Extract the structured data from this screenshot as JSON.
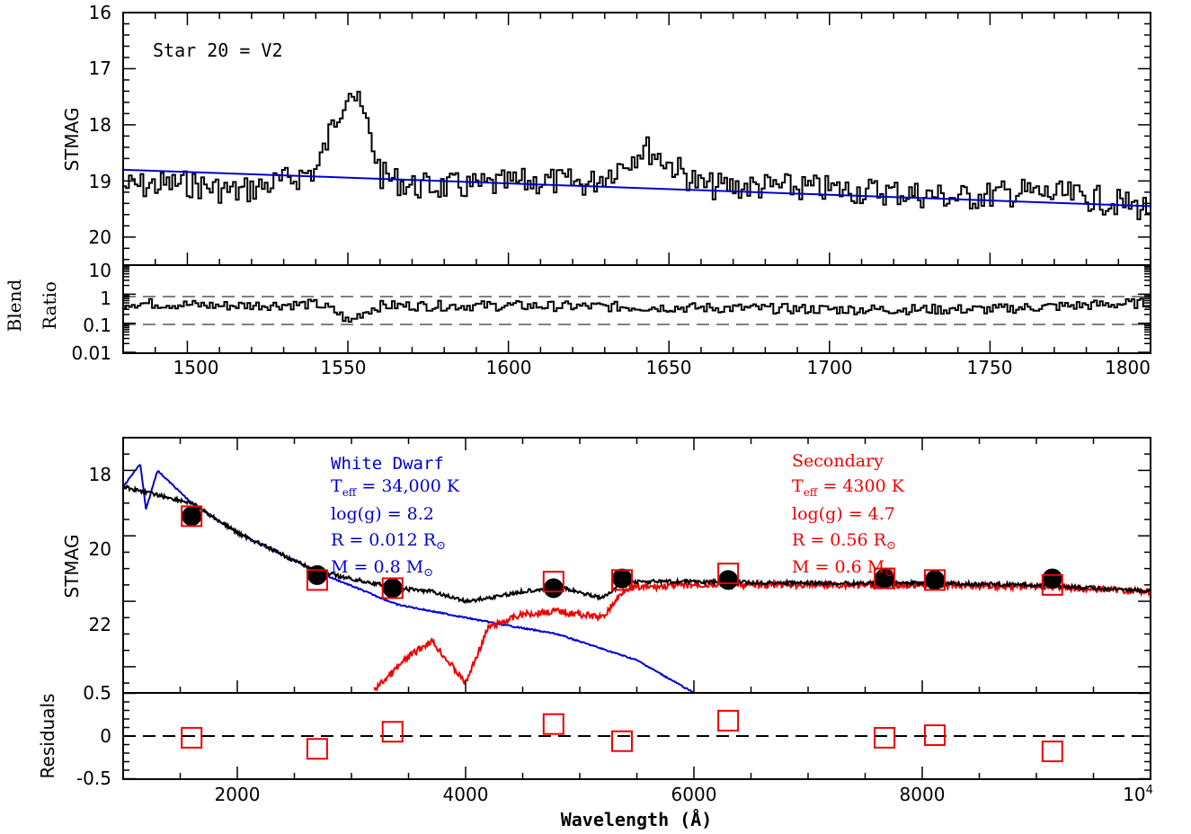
{
  "colors": {
    "wd": "#0000cc",
    "secondary": "#ee0000",
    "data": "#000000",
    "ref": "#555555"
  },
  "top": {
    "annotation": "Star 20 = V2",
    "ylabel": "STMAG",
    "ylim": [
      16,
      20.5
    ],
    "yticks": [
      "16",
      "17",
      "18",
      "19",
      "20"
    ],
    "xlim": [
      1480,
      1800
    ]
  },
  "ratio": {
    "ylabel_1": "Blend",
    "ylabel_2": "Ratio",
    "yticks": [
      "10",
      "1",
      "0.1",
      "0.01"
    ],
    "xticks": [
      "1500",
      "1550",
      "1600",
      "1650",
      "1700",
      "1750",
      "1800"
    ],
    "reference_lines": [
      1,
      0.1
    ]
  },
  "bottom": {
    "ylabel": "STMAG",
    "yticks": [
      "18",
      "20",
      "22"
    ],
    "ylim": [
      17,
      24.8
    ],
    "xlim": [
      1000,
      10000
    ],
    "wd_legend": {
      "name": "White Dwarf",
      "teff_label": "T",
      "teff_sub": "eff",
      "teff_value": " = 34,000 K",
      "logg": "log(g) = 8.2",
      "r_label": "R = 0.012 R",
      "m_label": "M = 0.8 M"
    },
    "sec_legend": {
      "name": "Secondary",
      "teff_label": "T",
      "teff_sub": "eff",
      "teff_value": " = 4300 K",
      "logg": "log(g) = 4.7",
      "r_label": "R = 0.56 R",
      "m_label": "M = 0.6 M"
    },
    "sun_symbol": "⊙"
  },
  "residuals": {
    "ylabel": "Residuals",
    "yticks": [
      "0.5",
      "0",
      "-0.5"
    ],
    "xticks": [
      "2000",
      "4000",
      "6000",
      "8000",
      "10"
    ],
    "x_exponent": "4",
    "xlabel": "Wavelength (Å)"
  },
  "chart_data": [
    {
      "type": "line",
      "name": "UV spectrum",
      "xlim": [
        1480,
        1800
      ],
      "ylim": [
        16,
        20.5
      ],
      "inverted_y": true,
      "series": [
        {
          "role": "observed",
          "x": [
            1480,
            1500,
            1515,
            1530,
            1540,
            1545,
            1550,
            1555,
            1560,
            1570,
            1590,
            1610,
            1625,
            1635,
            1642,
            1650,
            1660,
            1680,
            1700,
            1720,
            1740,
            1760,
            1780,
            1800
          ],
          "y": [
            19.1,
            19.05,
            19.2,
            19.0,
            18.8,
            18.0,
            17.3,
            17.9,
            18.9,
            19.1,
            19.1,
            19.0,
            19.05,
            18.7,
            18.4,
            18.7,
            19.1,
            19.1,
            19.15,
            19.2,
            19.3,
            19.2,
            19.3,
            19.5
          ]
        },
        {
          "role": "model",
          "x": [
            1480,
            1800
          ],
          "y": [
            18.8,
            19.45
          ]
        }
      ]
    },
    {
      "type": "line",
      "name": "Blend Ratio",
      "scale": "log",
      "ylim": [
        0.01,
        10
      ],
      "x": [
        1480,
        1510,
        1540,
        1550,
        1560,
        1600,
        1650,
        1700,
        1750,
        1800
      ],
      "y": [
        0.5,
        0.4,
        0.45,
        0.1,
        0.4,
        0.4,
        0.35,
        0.3,
        0.3,
        0.5
      ]
    },
    {
      "type": "line",
      "name": "SED",
      "xlim": [
        1000,
        10000
      ],
      "ylim": [
        17,
        24.8
      ],
      "inverted_y": true,
      "series": [
        {
          "role": "white dwarf model",
          "x": [
            1000,
            1150,
            1200,
            1300,
            1600,
            2000,
            2700,
            3400,
            4000,
            4300,
            4800,
            5500,
            6000
          ],
          "y": [
            18.5,
            17.8,
            19.2,
            18.0,
            19.0,
            19.9,
            21.1,
            22.1,
            22.5,
            22.7,
            23.0,
            23.8,
            24.8
          ]
        },
        {
          "role": "secondary model",
          "x": [
            3200,
            3500,
            3700,
            4000,
            4200,
            4500,
            4800,
            5200,
            5400,
            6000,
            7000,
            8000,
            9000,
            10000
          ],
          "y": [
            24.7,
            23.7,
            23.2,
            24.5,
            22.8,
            22.4,
            22.3,
            22.5,
            21.6,
            21.5,
            21.5,
            21.5,
            21.55,
            21.7
          ]
        },
        {
          "role": "combined model",
          "x": [
            1000,
            1600,
            2000,
            2700,
            3400,
            3700,
            4000,
            4200,
            4500,
            4800,
            5200,
            5400,
            6000,
            7000,
            8000,
            9000,
            10000
          ],
          "y": [
            18.5,
            19.0,
            19.9,
            21.1,
            21.6,
            21.7,
            22.0,
            21.9,
            21.7,
            21.55,
            21.9,
            21.4,
            21.4,
            21.45,
            21.45,
            21.5,
            21.7
          ]
        },
        {
          "role": "observed magnitudes",
          "x": [
            1600,
            2700,
            3360,
            4770,
            5370,
            6300,
            7670,
            8110,
            9140
          ],
          "y": [
            19.4,
            21.2,
            21.6,
            21.6,
            21.3,
            21.35,
            21.3,
            21.35,
            21.3
          ]
        },
        {
          "role": "synthetic magnitudes",
          "x": [
            1600,
            2700,
            3360,
            4770,
            5370,
            6300,
            7670,
            8110,
            9140
          ],
          "y": [
            19.4,
            21.35,
            21.6,
            21.4,
            21.35,
            21.15,
            21.3,
            21.35,
            21.5
          ]
        }
      ]
    },
    {
      "type": "scatter",
      "name": "Residuals",
      "ylim": [
        -0.5,
        0.5
      ],
      "x": [
        1600,
        2700,
        3360,
        4770,
        5370,
        6300,
        7670,
        8110,
        9140
      ],
      "y": [
        -0.02,
        -0.15,
        0.05,
        0.14,
        -0.06,
        0.18,
        -0.02,
        0.01,
        -0.18
      ]
    }
  ]
}
